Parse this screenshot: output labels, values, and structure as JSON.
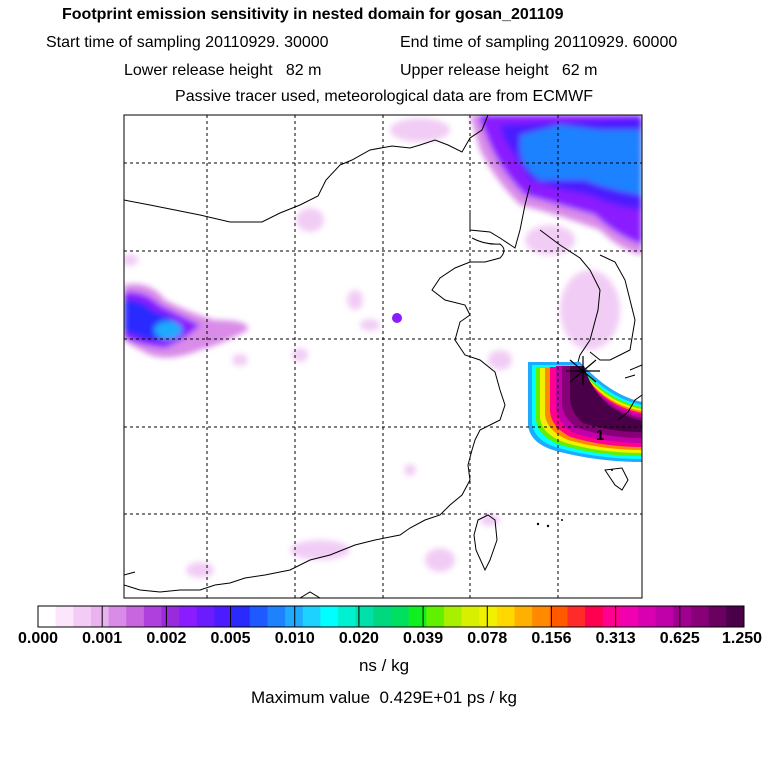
{
  "header": {
    "title": "Footprint emission sensitivity in nested domain for gosan_201109",
    "start_sampling": "Start time of sampling 20110929. 30000",
    "end_sampling": "End time of sampling 20110929. 60000",
    "lower_release": "Lower release height   82 m",
    "upper_release": "Upper release height   62 m",
    "tracer_note": "Passive tracer used, meteorological data are from ECMWF"
  },
  "map": {
    "release_marker_label": "1"
  },
  "colorbar": {
    "ticks": [
      "0.000",
      "0.001",
      "0.002",
      "0.005",
      "0.010",
      "0.020",
      "0.039",
      "0.078",
      "0.156",
      "0.313",
      "0.625",
      "1.250"
    ],
    "colors": [
      "#ffffff",
      "#fbe6fb",
      "#f3ccf5",
      "#eab3f0",
      "#d98be8",
      "#c866e0",
      "#b040dd",
      "#9a2bdc",
      "#8a1cff",
      "#6a1cff",
      "#4b1cff",
      "#2a2aff",
      "#1e5aff",
      "#1e82ff",
      "#1eaaff",
      "#1ed2ff",
      "#00ffff",
      "#00f0d0",
      "#00e0a8",
      "#00d880",
      "#00e060",
      "#10f020",
      "#60f000",
      "#a8f000",
      "#d8f000",
      "#f0f000",
      "#ffd800",
      "#ffb000",
      "#ff8a00",
      "#ff5a00",
      "#ff2a2a",
      "#ff0050",
      "#ff0090",
      "#f000b0",
      "#d800b0",
      "#c000a8",
      "#a00090",
      "#880078",
      "#6a0060",
      "#4a0048"
    ],
    "units": "ns / kg",
    "max_value": "Maximum value  0.429E+01 ps / kg"
  }
}
